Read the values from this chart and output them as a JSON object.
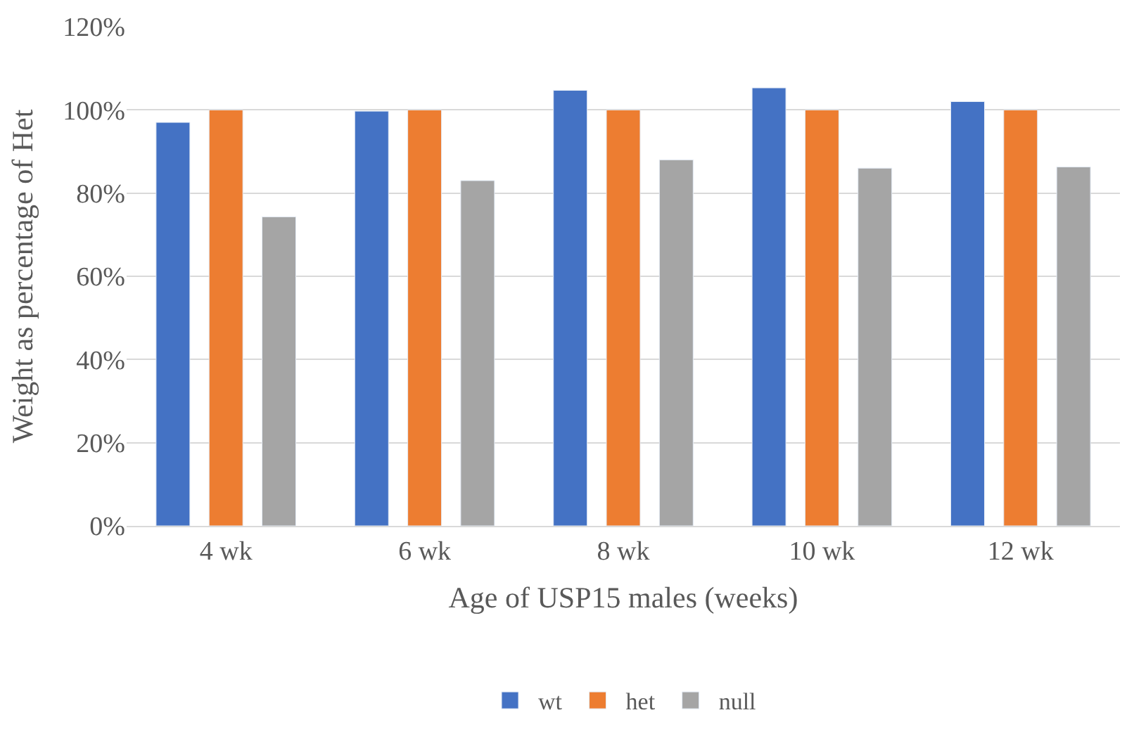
{
  "chart_data": {
    "type": "bar",
    "xlabel": "Age of USP15 males (weeks)",
    "ylabel": "Weight as percentage of Het",
    "categories": [
      "4 wk",
      "6 wk",
      "8 wk",
      "10 wk",
      "12 wk"
    ],
    "series": [
      {
        "name": "wt",
        "color": "#4472c4",
        "values": [
          97,
          99.7,
          104.7,
          105.3,
          102
        ]
      },
      {
        "name": "het",
        "color": "#ed7d31",
        "values": [
          100,
          100,
          100,
          100,
          100
        ]
      },
      {
        "name": "null",
        "color": "#a5a5a5",
        "values": [
          74.3,
          83,
          88,
          86,
          86.3
        ]
      }
    ],
    "ylim": [
      0,
      120
    ],
    "yticks": [
      {
        "value": 0,
        "label": "0%"
      },
      {
        "value": 20,
        "label": "20%"
      },
      {
        "value": 40,
        "label": "40%"
      },
      {
        "value": 60,
        "label": "60%"
      },
      {
        "value": 80,
        "label": "80%"
      },
      {
        "value": 100,
        "label": "100%"
      },
      {
        "value": 120,
        "label": "120%"
      }
    ],
    "grid": "y",
    "legend": "bottom"
  }
}
